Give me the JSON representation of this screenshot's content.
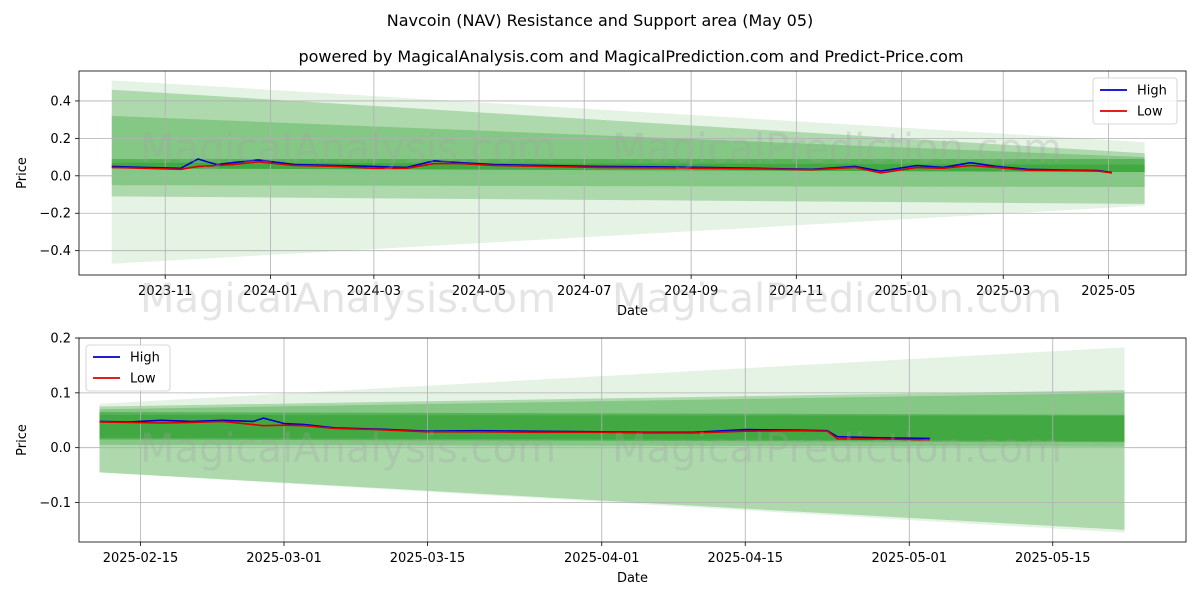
{
  "figure": {
    "suptitle": "Navcoin (NAV) Resistance and Support area (May 05)",
    "subtitle": "powered by MagicalAnalysis.com and MagicalPrediction.com and Predict-Price.com",
    "watermarks": [
      "MagicalAnalysis.com",
      "MagicalPrediction.com"
    ]
  },
  "colors": {
    "high": "#0000cc",
    "low": "#dd0000",
    "band": "#2ca02c",
    "grid": "#b0b0b0"
  },
  "chart_data": [
    {
      "type": "line",
      "xlabel": "Date",
      "ylabel": "Price",
      "x_ticks": [
        "2023-11",
        "2024-01",
        "2024-03",
        "2024-05",
        "2024-07",
        "2024-09",
        "2024-11",
        "2025-01",
        "2025-03",
        "2025-05"
      ],
      "y_ticks": [
        "0.4",
        "0.2",
        "0.0",
        "−0.2",
        "−0.4"
      ],
      "y_tick_values": [
        0.4,
        0.2,
        0.0,
        -0.2,
        -0.4
      ],
      "xlim": [
        "2023-09-12",
        "2025-06-15"
      ],
      "ylim": [
        -0.53,
        0.56
      ],
      "grid": true,
      "legend": {
        "position": "top-right",
        "entries": [
          "High",
          "Low"
        ]
      },
      "series": [
        {
          "name": "High",
          "x": [
            "2023-10-01",
            "2023-10-20",
            "2023-11-10",
            "2023-11-20",
            "2023-12-01",
            "2023-12-10",
            "2023-12-25",
            "2024-01-15",
            "2024-02-10",
            "2024-03-01",
            "2024-03-20",
            "2024-04-05",
            "2024-04-20",
            "2024-05-10",
            "2024-06-10",
            "2024-07-10",
            "2024-08-10",
            "2024-09-10",
            "2024-10-10",
            "2024-11-10",
            "2024-12-05",
            "2024-12-20",
            "2025-01-10",
            "2025-01-25",
            "2025-02-10",
            "2025-02-25",
            "2025-03-15",
            "2025-04-10",
            "2025-04-25",
            "2025-05-03"
          ],
          "y": [
            0.05,
            0.045,
            0.04,
            0.09,
            0.06,
            0.07,
            0.085,
            0.06,
            0.055,
            0.05,
            0.045,
            0.08,
            0.07,
            0.06,
            0.055,
            0.05,
            0.048,
            0.045,
            0.04,
            0.035,
            0.05,
            0.025,
            0.055,
            0.045,
            0.07,
            0.05,
            0.035,
            0.03,
            0.028,
            0.017
          ]
        },
        {
          "name": "Low",
          "x": [
            "2023-10-01",
            "2023-10-20",
            "2023-11-10",
            "2023-11-20",
            "2023-12-01",
            "2023-12-10",
            "2023-12-25",
            "2024-01-15",
            "2024-02-10",
            "2024-03-01",
            "2024-03-20",
            "2024-04-05",
            "2024-04-20",
            "2024-05-10",
            "2024-06-10",
            "2024-07-10",
            "2024-08-10",
            "2024-09-10",
            "2024-10-10",
            "2024-11-10",
            "2024-12-05",
            "2024-12-20",
            "2025-01-10",
            "2025-01-25",
            "2025-02-10",
            "2025-02-25",
            "2025-03-15",
            "2025-04-10",
            "2025-04-25",
            "2025-05-03"
          ],
          "y": [
            0.045,
            0.04,
            0.035,
            0.05,
            0.055,
            0.06,
            0.075,
            0.055,
            0.05,
            0.04,
            0.04,
            0.065,
            0.065,
            0.055,
            0.05,
            0.045,
            0.043,
            0.04,
            0.037,
            0.032,
            0.045,
            0.015,
            0.045,
            0.04,
            0.055,
            0.045,
            0.03,
            0.028,
            0.025,
            0.015
          ]
        }
      ],
      "bands": [
        {
          "x": [
            "2023-10-01",
            "2025-05-22"
          ],
          "upper": [
            0.51,
            0.18
          ],
          "lower": [
            -0.47,
            -0.16
          ]
        },
        {
          "x": [
            "2023-10-01",
            "2025-05-22"
          ],
          "upper": [
            0.46,
            0.12
          ],
          "lower": [
            -0.11,
            -0.15
          ]
        },
        {
          "x": [
            "2023-10-01",
            "2025-05-22"
          ],
          "upper": [
            0.32,
            0.1
          ],
          "lower": [
            -0.05,
            -0.06
          ]
        },
        {
          "x": [
            "2023-10-01",
            "2025-05-22"
          ],
          "upper": [
            0.09,
            0.09
          ],
          "lower": [
            0.04,
            0.02
          ]
        },
        {
          "x": [
            "2023-10-01",
            "2025-05-22"
          ],
          "upper": [
            0.07,
            0.06
          ],
          "lower": [
            0.04,
            0.02
          ]
        }
      ]
    },
    {
      "type": "line",
      "xlabel": "Date",
      "ylabel": "Price",
      "x_ticks": [
        "2025-02-15",
        "2025-03-01",
        "2025-03-15",
        "2025-04-01",
        "2025-04-15",
        "2025-05-01",
        "2025-05-15"
      ],
      "y_ticks": [
        "0.2",
        "0.1",
        "0.0",
        "−0.1"
      ],
      "y_tick_values": [
        0.2,
        0.1,
        0.0,
        -0.1
      ],
      "xlim": [
        "2025-02-09",
        "2025-05-28"
      ],
      "ylim": [
        -0.172,
        0.2
      ],
      "grid": true,
      "legend": {
        "position": "top-left",
        "entries": [
          "High",
          "Low"
        ]
      },
      "series": [
        {
          "name": "High",
          "x": [
            "2025-02-11",
            "2025-02-14",
            "2025-02-17",
            "2025-02-20",
            "2025-02-23",
            "2025-02-26",
            "2025-02-27",
            "2025-03-01",
            "2025-03-03",
            "2025-03-06",
            "2025-03-10",
            "2025-03-15",
            "2025-03-20",
            "2025-03-25",
            "2025-04-01",
            "2025-04-05",
            "2025-04-10",
            "2025-04-15",
            "2025-04-20",
            "2025-04-23",
            "2025-04-24",
            "2025-04-28",
            "2025-05-03"
          ],
          "y": [
            0.048,
            0.047,
            0.05,
            0.048,
            0.05,
            0.048,
            0.054,
            0.044,
            0.042,
            0.036,
            0.034,
            0.03,
            0.031,
            0.03,
            0.029,
            0.028,
            0.028,
            0.033,
            0.032,
            0.031,
            0.02,
            0.018,
            0.017
          ]
        },
        {
          "name": "Low",
          "x": [
            "2025-02-11",
            "2025-02-14",
            "2025-02-17",
            "2025-02-20",
            "2025-02-23",
            "2025-02-26",
            "2025-02-27",
            "2025-03-01",
            "2025-03-03",
            "2025-03-06",
            "2025-03-10",
            "2025-03-15",
            "2025-03-20",
            "2025-03-25",
            "2025-04-01",
            "2025-04-05",
            "2025-04-10",
            "2025-04-15",
            "2025-04-20",
            "2025-04-23",
            "2025-04-24",
            "2025-04-28",
            "2025-05-03"
          ],
          "y": [
            0.047,
            0.046,
            0.045,
            0.046,
            0.048,
            0.042,
            0.04,
            0.041,
            0.04,
            0.035,
            0.033,
            0.029,
            0.029,
            0.028,
            0.028,
            0.027,
            0.027,
            0.03,
            0.031,
            0.03,
            0.016,
            0.016,
            0.014
          ]
        }
      ],
      "bands": [
        {
          "x": [
            "2025-02-11",
            "2025-05-22"
          ],
          "upper": [
            0.08,
            0.183
          ],
          "lower": [
            -0.045,
            -0.155
          ]
        },
        {
          "x": [
            "2025-02-11",
            "2025-05-22"
          ],
          "upper": [
            0.075,
            0.105
          ],
          "lower": [
            -0.045,
            -0.15
          ]
        },
        {
          "x": [
            "2025-02-11",
            "2025-05-22"
          ],
          "upper": [
            0.07,
            0.1
          ],
          "lower": [
            0.005,
            0.002
          ]
        },
        {
          "x": [
            "2025-02-11",
            "2025-05-22"
          ],
          "upper": [
            0.065,
            0.06
          ],
          "lower": [
            0.015,
            0.01
          ]
        },
        {
          "x": [
            "2025-02-11",
            "2025-05-22"
          ],
          "upper": [
            0.06,
            0.058
          ],
          "lower": [
            0.018,
            0.012
          ]
        }
      ]
    }
  ]
}
